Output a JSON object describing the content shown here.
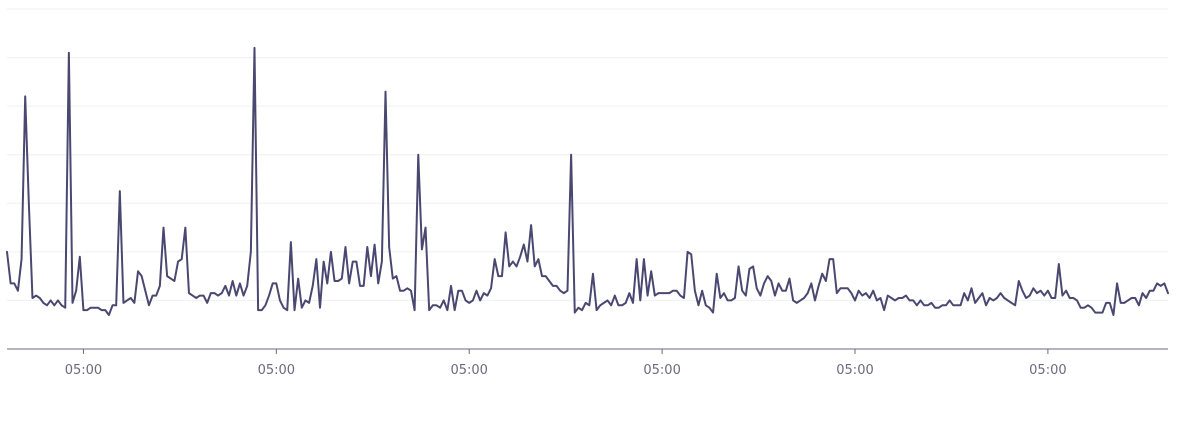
{
  "chart_data": {
    "type": "line",
    "title": "",
    "xlabel": "",
    "ylabel": "",
    "grid": true,
    "y_ticks": [
      0,
      1,
      2,
      3,
      4,
      5,
      6,
      7
    ],
    "ylim": [
      0,
      7
    ],
    "x_ticks": [
      {
        "index": 21,
        "label": "05:00"
      },
      {
        "index": 74,
        "label": "05:00"
      },
      {
        "index": 127,
        "label": "05:00"
      },
      {
        "index": 180,
        "label": "05:00"
      },
      {
        "index": 233,
        "label": "05:00"
      },
      {
        "index": 286,
        "label": "05:00"
      },
      {
        "index": 339,
        "label": "05:00"
      }
    ],
    "series": [
      {
        "color": "#4a4870",
        "values": [
          2.0,
          1.35,
          1.35,
          1.2,
          1.85,
          5.2,
          3.0,
          1.05,
          1.1,
          1.05,
          0.95,
          0.9,
          1.0,
          0.9,
          1.0,
          0.9,
          0.85,
          6.1,
          0.95,
          1.2,
          1.9,
          0.8,
          0.8,
          0.85,
          0.85,
          0.85,
          0.8,
          0.8,
          0.7,
          0.9,
          0.9,
          3.25,
          0.95,
          1.0,
          1.05,
          0.95,
          1.6,
          1.5,
          1.2,
          0.9,
          1.1,
          1.1,
          1.3,
          2.5,
          1.5,
          1.45,
          1.4,
          1.8,
          1.85,
          2.5,
          1.15,
          1.1,
          1.05,
          1.1,
          1.1,
          0.95,
          1.15,
          1.15,
          1.1,
          1.15,
          1.3,
          1.1,
          1.4,
          1.1,
          1.35,
          1.1,
          1.3,
          2.0,
          6.2,
          0.8,
          0.8,
          0.9,
          1.1,
          1.35,
          1.35,
          1.0,
          0.85,
          0.8,
          2.2,
          0.8,
          1.45,
          0.85,
          1.0,
          0.95,
          1.3,
          1.85,
          0.85,
          1.8,
          1.35,
          2.0,
          1.4,
          1.4,
          1.45,
          2.1,
          1.35,
          1.8,
          1.8,
          1.3,
          1.3,
          2.1,
          1.5,
          2.15,
          1.35,
          1.8,
          5.3,
          2.1,
          1.45,
          1.5,
          1.2,
          1.2,
          1.25,
          1.2,
          0.8,
          4.0,
          2.05,
          2.5,
          0.8,
          0.9,
          0.9,
          0.85,
          1.0,
          0.8,
          1.3,
          0.8,
          1.2,
          1.2,
          1.0,
          0.95,
          1.0,
          1.2,
          1.0,
          1.15,
          1.1,
          1.25,
          1.85,
          1.5,
          1.5,
          2.4,
          1.7,
          1.8,
          1.7,
          1.9,
          2.15,
          1.8,
          2.55,
          1.7,
          1.85,
          1.5,
          1.5,
          1.4,
          1.3,
          1.3,
          1.2,
          1.15,
          1.2,
          4.0,
          0.75,
          0.85,
          0.8,
          0.95,
          0.9,
          1.55,
          0.8,
          0.9,
          0.95,
          1.0,
          0.9,
          1.1,
          0.9,
          0.9,
          0.95,
          1.15,
          0.95,
          1.85,
          1.0,
          1.85,
          1.1,
          1.6,
          1.1,
          1.15,
          1.15,
          1.15,
          1.15,
          1.2,
          1.2,
          1.1,
          1.05,
          2.0,
          1.95,
          1.2,
          0.9,
          1.2,
          0.9,
          0.85,
          0.75,
          1.55,
          1.05,
          1.15,
          1.0,
          1.0,
          1.05,
          1.7,
          1.2,
          1.1,
          1.65,
          1.7,
          1.25,
          1.1,
          1.35,
          1.5,
          1.4,
          1.1,
          1.35,
          1.2,
          1.2,
          1.45,
          1.0,
          0.95,
          1.0,
          1.05,
          1.15,
          1.35,
          1.0,
          1.3,
          1.55,
          1.4,
          1.85,
          1.85,
          1.15,
          1.25,
          1.25,
          1.25,
          1.15,
          1.0,
          1.2,
          1.1,
          1.15,
          1.05,
          1.2,
          1.0,
          1.05,
          0.8,
          1.1,
          1.05,
          1.0,
          1.05,
          1.05,
          1.1,
          1.0,
          1.0,
          0.9,
          1.0,
          0.9,
          0.9,
          0.95,
          0.85,
          0.85,
          0.9,
          0.9,
          1.0,
          0.9,
          0.9,
          0.9,
          1.15,
          1.0,
          1.25,
          0.95,
          1.05,
          1.15,
          0.9,
          1.05,
          1.0,
          1.05,
          1.15,
          1.05,
          1.0,
          0.95,
          0.9,
          1.4,
          1.2,
          1.05,
          1.1,
          1.25,
          1.15,
          1.2,
          1.1,
          1.2,
          1.05,
          1.05,
          1.75,
          1.1,
          1.2,
          1.05,
          1.05,
          1.0,
          0.85,
          0.85,
          0.9,
          0.85,
          0.75,
          0.75,
          0.75,
          0.95,
          0.95,
          0.7,
          1.35,
          0.95,
          0.95,
          1.0,
          1.05,
          1.05,
          0.9,
          1.15,
          1.05,
          1.2,
          1.2,
          1.35,
          1.3,
          1.35,
          1.15
        ]
      }
    ]
  }
}
